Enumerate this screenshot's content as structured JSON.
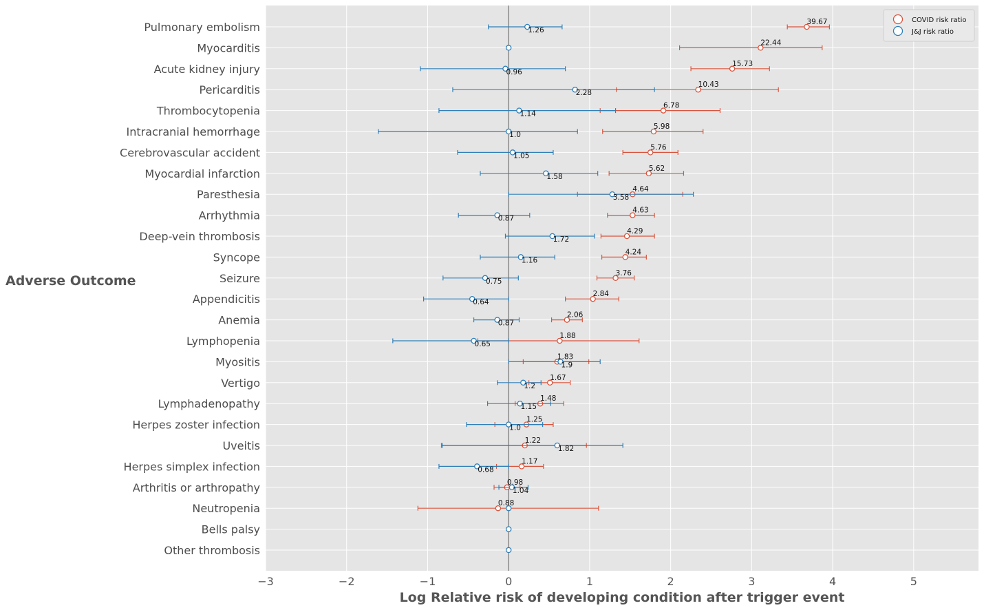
{
  "chart_data": {
    "type": "scatter",
    "subtype": "forest-plot-with-error-bars",
    "title": "",
    "xlabel": "Log Relative risk of developing condition after trigger event",
    "ylabel": "Adverse Outcome",
    "xlim": [
      -3,
      5.8
    ],
    "xticks": [
      -3,
      -2,
      -1,
      0,
      1,
      2,
      3,
      4,
      5
    ],
    "xtick_labels": [
      "−3",
      "−2",
      "−1",
      "0",
      "1",
      "2",
      "3",
      "4",
      "5"
    ],
    "grid": true,
    "legend_position": "top-right",
    "categories": [
      "Pulmonary embolism",
      "Myocarditis",
      "Acute kidney injury",
      "Pericarditis",
      "Thrombocytopenia",
      "Intracranial hemorrhage",
      "Cerebrovascular accident",
      "Myocardial infarction",
      "Paresthesia",
      "Arrhythmia",
      "Deep-vein thrombosis",
      "Syncope",
      "Seizure",
      "Appendicitis",
      "Anemia",
      "Lymphopenia",
      "Myositis",
      "Vertigo",
      "Lymphadenopathy",
      "Herpes zoster infection",
      "Uveitis",
      "Herpes simplex infection",
      "Arthritis or arthropathy",
      "Neutropenia",
      "Bells palsy",
      "Other thrombosis"
    ],
    "series": [
      {
        "name": "COVID risk ratio",
        "color": "#d9543c",
        "points": [
          {
            "category": "Pulmonary embolism",
            "x": 3.68,
            "lo": 3.44,
            "hi": 3.96,
            "label": "39.67"
          },
          {
            "category": "Myocarditis",
            "x": 3.11,
            "lo": 2.11,
            "hi": 3.87,
            "label": "22.44"
          },
          {
            "category": "Acute kidney injury",
            "x": 2.76,
            "lo": 2.25,
            "hi": 3.22,
            "label": "15.73"
          },
          {
            "category": "Pericarditis",
            "x": 2.34,
            "lo": 1.33,
            "hi": 3.33,
            "label": "10.43"
          },
          {
            "category": "Thrombocytopenia",
            "x": 1.91,
            "lo": 1.13,
            "hi": 2.61,
            "label": "6.78"
          },
          {
            "category": "Intracranial hemorrhage",
            "x": 1.79,
            "lo": 1.16,
            "hi": 2.4,
            "label": "5.98"
          },
          {
            "category": "Cerebrovascular accident",
            "x": 1.75,
            "lo": 1.41,
            "hi": 2.09,
            "label": "5.76"
          },
          {
            "category": "Myocardial infarction",
            "x": 1.73,
            "lo": 1.24,
            "hi": 2.16,
            "label": "5.62"
          },
          {
            "category": "Paresthesia",
            "x": 1.53,
            "lo": 0.85,
            "hi": 2.15,
            "label": "4.64"
          },
          {
            "category": "Arrhythmia",
            "x": 1.53,
            "lo": 1.22,
            "hi": 1.8,
            "label": "4.63"
          },
          {
            "category": "Deep-vein thrombosis",
            "x": 1.46,
            "lo": 1.14,
            "hi": 1.8,
            "label": "4.29"
          },
          {
            "category": "Syncope",
            "x": 1.44,
            "lo": 1.15,
            "hi": 1.7,
            "label": "4.24"
          },
          {
            "category": "Seizure",
            "x": 1.32,
            "lo": 1.09,
            "hi": 1.55,
            "label": "3.76"
          },
          {
            "category": "Appendicitis",
            "x": 1.04,
            "lo": 0.7,
            "hi": 1.36,
            "label": "2.84"
          },
          {
            "category": "Anemia",
            "x": 0.72,
            "lo": 0.53,
            "hi": 0.91,
            "label": "2.06"
          },
          {
            "category": "Lymphopenia",
            "x": 0.63,
            "lo": -0.38,
            "hi": 1.61,
            "label": "1.88"
          },
          {
            "category": "Myositis",
            "x": 0.6,
            "lo": 0.18,
            "hi": 0.99,
            "label": "1.83"
          },
          {
            "category": "Vertigo",
            "x": 0.51,
            "lo": 0.25,
            "hi": 0.76,
            "label": "1.67"
          },
          {
            "category": "Lymphadenopathy",
            "x": 0.39,
            "lo": 0.08,
            "hi": 0.68,
            "label": "1.48"
          },
          {
            "category": "Herpes zoster infection",
            "x": 0.22,
            "lo": -0.17,
            "hi": 0.55,
            "label": "1.25"
          },
          {
            "category": "Uveitis",
            "x": 0.2,
            "lo": -0.83,
            "hi": 0.96,
            "label": "1.22"
          },
          {
            "category": "Herpes simplex infection",
            "x": 0.16,
            "lo": -0.15,
            "hi": 0.43,
            "label": "1.17"
          },
          {
            "category": "Arthritis or arthropathy",
            "x": -0.02,
            "lo": -0.18,
            "hi": 0.14,
            "label": "0.98"
          },
          {
            "category": "Neutropenia",
            "x": -0.13,
            "lo": -1.12,
            "hi": 1.11,
            "label": "0.88"
          }
        ]
      },
      {
        "name": "J&J risk ratio",
        "color": "#2f7fb8",
        "points": [
          {
            "category": "Pulmonary embolism",
            "x": 0.23,
            "lo": -0.25,
            "hi": 0.66,
            "label": "1.26"
          },
          {
            "category": "Myocarditis",
            "x": 0.0,
            "lo": 0.0,
            "hi": 0.0,
            "label": ""
          },
          {
            "category": "Acute kidney injury",
            "x": -0.04,
            "lo": -1.09,
            "hi": 0.7,
            "label": "0.96"
          },
          {
            "category": "Pericarditis",
            "x": 0.82,
            "lo": -0.69,
            "hi": 1.8,
            "label": "2.28"
          },
          {
            "category": "Thrombocytopenia",
            "x": 0.13,
            "lo": -0.86,
            "hi": 1.32,
            "label": "1.14"
          },
          {
            "category": "Intracranial hemorrhage",
            "x": 0.0,
            "lo": -1.61,
            "hi": 0.85,
            "label": "1.0"
          },
          {
            "category": "Cerebrovascular accident",
            "x": 0.05,
            "lo": -0.63,
            "hi": 0.55,
            "label": "1.05"
          },
          {
            "category": "Myocardial infarction",
            "x": 0.46,
            "lo": -0.35,
            "hi": 1.1,
            "label": "1.58"
          },
          {
            "category": "Paresthesia",
            "x": 1.28,
            "lo": 0.0,
            "hi": 2.28,
            "label": "3.58"
          },
          {
            "category": "Arrhythmia",
            "x": -0.14,
            "lo": -0.62,
            "hi": 0.26,
            "label": "0.87"
          },
          {
            "category": "Deep-vein thrombosis",
            "x": 0.54,
            "lo": -0.04,
            "hi": 1.06,
            "label": "1.72"
          },
          {
            "category": "Syncope",
            "x": 0.15,
            "lo": -0.35,
            "hi": 0.57,
            "label": "1.16"
          },
          {
            "category": "Seizure",
            "x": -0.29,
            "lo": -0.81,
            "hi": 0.12,
            "label": "0.75"
          },
          {
            "category": "Appendicitis",
            "x": -0.45,
            "lo": -1.05,
            "hi": 0.0,
            "label": "0.64"
          },
          {
            "category": "Anemia",
            "x": -0.14,
            "lo": -0.43,
            "hi": 0.13,
            "label": "0.87"
          },
          {
            "category": "Lymphopenia",
            "x": -0.43,
            "lo": -1.43,
            "hi": 0.0,
            "label": "0.65"
          },
          {
            "category": "Myositis",
            "x": 0.64,
            "lo": 0.0,
            "hi": 1.13,
            "label": "1.9"
          },
          {
            "category": "Vertigo",
            "x": 0.18,
            "lo": -0.14,
            "hi": 0.4,
            "label": "1.2"
          },
          {
            "category": "Lymphadenopathy",
            "x": 0.14,
            "lo": -0.26,
            "hi": 0.52,
            "label": "1.15"
          },
          {
            "category": "Herpes zoster infection",
            "x": 0.0,
            "lo": -0.52,
            "hi": 0.42,
            "label": "1.0"
          },
          {
            "category": "Uveitis",
            "x": 0.6,
            "lo": -0.82,
            "hi": 1.41,
            "label": "1.82"
          },
          {
            "category": "Herpes simplex infection",
            "x": -0.39,
            "lo": -0.86,
            "hi": 0.0,
            "label": "0.68"
          },
          {
            "category": "Arthritis or arthropathy",
            "x": 0.04,
            "lo": -0.12,
            "hi": 0.24,
            "label": "1.04"
          },
          {
            "category": "Neutropenia",
            "x": 0.0,
            "lo": 0.0,
            "hi": 0.0,
            "label": ""
          },
          {
            "category": "Bells palsy",
            "x": 0.0,
            "lo": 0.0,
            "hi": 0.0,
            "label": ""
          },
          {
            "category": "Other thrombosis",
            "x": 0.0,
            "lo": 0.0,
            "hi": 0.0,
            "label": ""
          }
        ]
      }
    ],
    "colors": {
      "plot_background": "#e5e5e5",
      "grid": "#ffffff",
      "zero_line": "#555555"
    }
  }
}
